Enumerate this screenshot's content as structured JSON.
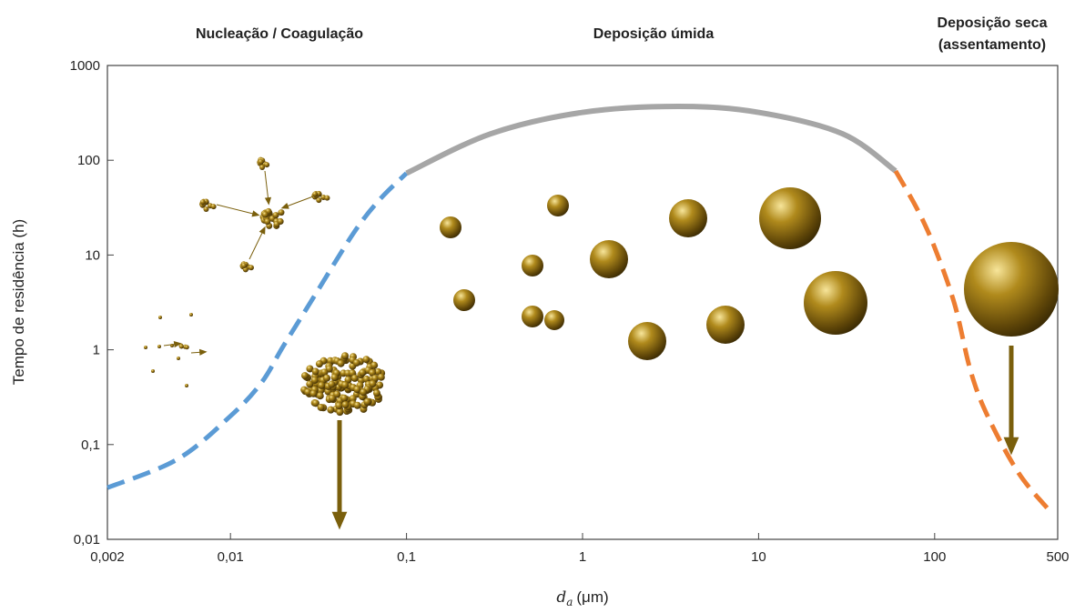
{
  "chart_data": {
    "type": "line",
    "annotations": [
      "Nucleação / Coagulação",
      "Deposição úmida",
      "Deposição seca",
      "(assentamento)"
    ],
    "ylabel": "Tempo de residência (h)",
    "xlabel_symbol": "d",
    "xlabel_subscript": "a",
    "xlabel_unit": "(μm)",
    "xscale": "log",
    "yscale": "log",
    "xlim": [
      0.002,
      500
    ],
    "ylim": [
      0.01,
      1000
    ],
    "xticks": [
      {
        "value": 0.002,
        "label": "0,002"
      },
      {
        "value": 0.01,
        "label": "0,01"
      },
      {
        "value": 0.1,
        "label": "0,1"
      },
      1,
      10,
      100,
      500
    ],
    "yticks": [
      {
        "value": 0.01,
        "label": "0,01"
      },
      {
        "value": 0.1,
        "label": "0,1"
      },
      1,
      10,
      100,
      1000
    ],
    "series": [
      {
        "color": "#5b9bd5",
        "dashed": true,
        "x": [
          0.002,
          0.005,
          0.01,
          0.015,
          0.02,
          0.03,
          0.05,
          0.07,
          0.1
        ],
        "values": [
          0.035,
          0.07,
          0.2,
          0.45,
          1.1,
          3.7,
          17,
          38,
          73
        ]
      },
      {
        "color": "#a6a6a6",
        "dashed": false,
        "x": [
          0.1,
          0.3,
          1,
          3.5,
          10,
          30,
          60
        ],
        "values": [
          73,
          190,
          320,
          370,
          320,
          190,
          77
        ]
      },
      {
        "color": "#ed7d31",
        "dashed": true,
        "x": [
          60,
          80,
          100,
          130,
          160,
          200,
          300,
          450
        ],
        "values": [
          77,
          30,
          12,
          3,
          0.6,
          0.2,
          0.05,
          0.02
        ]
      }
    ]
  }
}
